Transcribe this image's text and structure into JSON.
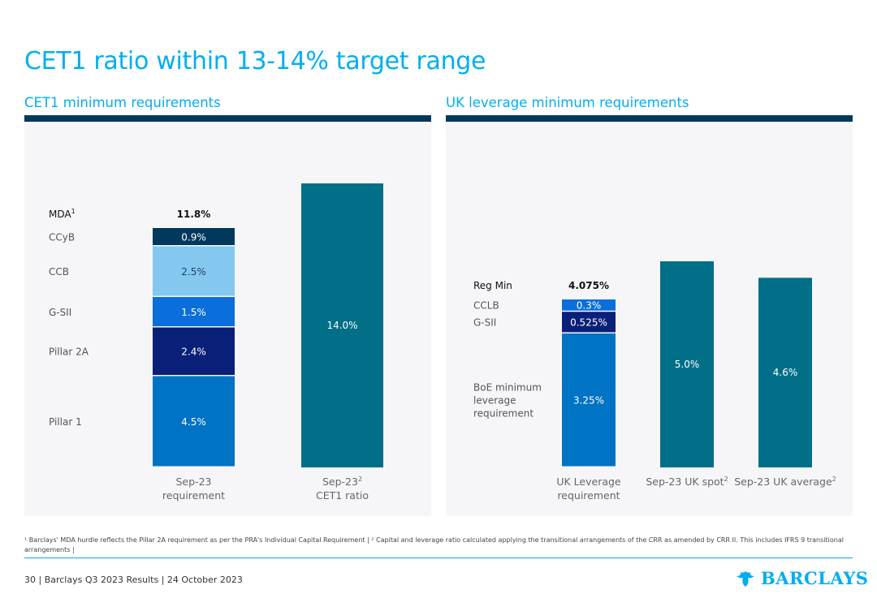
{
  "page": {
    "title": "CET1 ratio within 13-14% target range",
    "left_section_title": "CET1 minimum requirements",
    "right_section_title": "UK leverage minimum requirements",
    "footnote": "¹ Barclays' MDA hurdle reflects the Pillar 2A requirement as per the PRA's Individual Capital Requirement | ² Capital and leverage ratio calculated applying the transitional arrangements of the CRR as amended by CRR II. This includes IFRS 9 transitional arrangements |",
    "footer": "30 | Barclays Q3 2023 Results | 24 October 2023",
    "logo_text": "BARCLAYS"
  },
  "colors": {
    "accent": "#00aeef",
    "navy": "#00395d",
    "teal": "#006f87",
    "dark_blue": "#0a1f78",
    "panel_bg": "#f6f6f9"
  },
  "chart_data": [
    {
      "type": "bar",
      "stacked": true,
      "title": "CET1 minimum requirements",
      "ylim": [
        0,
        14.0
      ],
      "categories": [
        {
          "label": "Sep-23",
          "label2": "requirement",
          "sup": ""
        },
        {
          "label": "Sep-23",
          "label2": "CET1 ratio",
          "sup": "2"
        }
      ],
      "stack": {
        "category_index": 0,
        "total": 11.8,
        "total_label": "11.8%",
        "total_name": "MDA",
        "total_name_sup": "1",
        "segments": [
          {
            "name": "Pillar 1",
            "value": 4.5,
            "label": "4.5%",
            "color": "#0073c4"
          },
          {
            "name": "Pillar 2A",
            "value": 2.4,
            "label": "2.4%",
            "color": "#0a1f78"
          },
          {
            "name": "G-SII",
            "value": 1.5,
            "label": "1.5%",
            "color": "#0a6fdb"
          },
          {
            "name": "CCB",
            "value": 2.5,
            "label": "2.5%",
            "color": "#84c8ef"
          },
          {
            "name": "CCyB",
            "value": 0.9,
            "label": "0.9%",
            "color": "#00395d"
          }
        ]
      },
      "bars": [
        {
          "category_index": 1,
          "value": 14.0,
          "label": "14.0%",
          "color": "#006f87"
        }
      ]
    },
    {
      "type": "bar",
      "stacked": true,
      "title": "UK leverage minimum requirements",
      "ylim": [
        0,
        5.0
      ],
      "categories": [
        {
          "label": "UK Leverage",
          "label2": "requirement",
          "sup": ""
        },
        {
          "label": "Sep-23 UK spot",
          "label2": "",
          "sup": "2"
        },
        {
          "label": "Sep-23 UK average",
          "label2": "",
          "sup": "2"
        }
      ],
      "stack": {
        "category_index": 0,
        "total": 4.075,
        "total_label": "4.075%",
        "total_name": "Reg Min",
        "total_name_sup": "",
        "segments": [
          {
            "name": "BoE minimum leverage requirement",
            "value": 3.25,
            "label": "3.25%",
            "color": "#0073c4"
          },
          {
            "name": "G-SII",
            "value": 0.525,
            "label": "0.525%",
            "color": "#0a1f78"
          },
          {
            "name": "CCLB",
            "value": 0.3,
            "label": "0.3%",
            "color": "#0a6fdb"
          }
        ]
      },
      "bars": [
        {
          "category_index": 1,
          "value": 5.0,
          "label": "5.0%",
          "color": "#006f87"
        },
        {
          "category_index": 2,
          "value": 4.6,
          "label": "4.6%",
          "color": "#006f87"
        }
      ]
    }
  ]
}
